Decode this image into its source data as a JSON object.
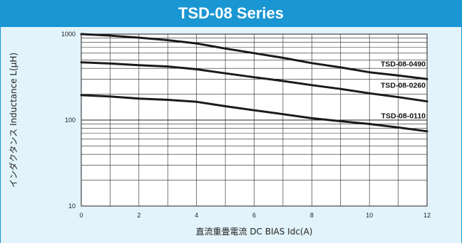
{
  "title": "TSD-08 Series",
  "colors": {
    "header": "#1a96d3",
    "background": "#e2f3fb",
    "plot_area": "#ffffff",
    "grid": "#222222",
    "line": "#1a1a1a"
  },
  "chart_data": {
    "type": "line",
    "xlabel": "直流重畳電流 DC BIAS Idc(A)",
    "ylabel": "インダクタンス Inductance L(μH)",
    "xlim": [
      0,
      12
    ],
    "ylim": [
      10,
      1000
    ],
    "yscale": "log",
    "grid": true,
    "x_ticks": [
      "0",
      "2",
      "4",
      "6",
      "8",
      "10",
      "12"
    ],
    "y_ticks": [
      "10",
      "100",
      "1000"
    ],
    "series": [
      {
        "name": "TSD-08-0490",
        "points": [
          [
            0,
            1000
          ],
          [
            1,
            960
          ],
          [
            2,
            910
          ],
          [
            3,
            850
          ],
          [
            4,
            780
          ],
          [
            5,
            680
          ],
          [
            6,
            600
          ],
          [
            7,
            530
          ],
          [
            8,
            460
          ],
          [
            9,
            410
          ],
          [
            10,
            360
          ],
          [
            11,
            330
          ],
          [
            12,
            300
          ]
        ]
      },
      {
        "name": "TSD-08-0260",
        "points": [
          [
            0,
            470
          ],
          [
            1,
            455
          ],
          [
            2,
            435
          ],
          [
            3,
            420
          ],
          [
            3.5,
            405
          ],
          [
            4,
            390
          ],
          [
            5,
            350
          ],
          [
            6,
            315
          ],
          [
            7,
            285
          ],
          [
            8,
            255
          ],
          [
            9,
            230
          ],
          [
            10,
            205
          ],
          [
            11,
            185
          ],
          [
            12,
            165
          ]
        ]
      },
      {
        "name": "TSD-08-0110",
        "points": [
          [
            0,
            195
          ],
          [
            1,
            188
          ],
          [
            2,
            178
          ],
          [
            3,
            172
          ],
          [
            4,
            163
          ],
          [
            5,
            145
          ],
          [
            6,
            130
          ],
          [
            7,
            117
          ],
          [
            8,
            105
          ],
          [
            9,
            97
          ],
          [
            10,
            90
          ],
          [
            11,
            82
          ],
          [
            12,
            74
          ]
        ]
      }
    ]
  }
}
